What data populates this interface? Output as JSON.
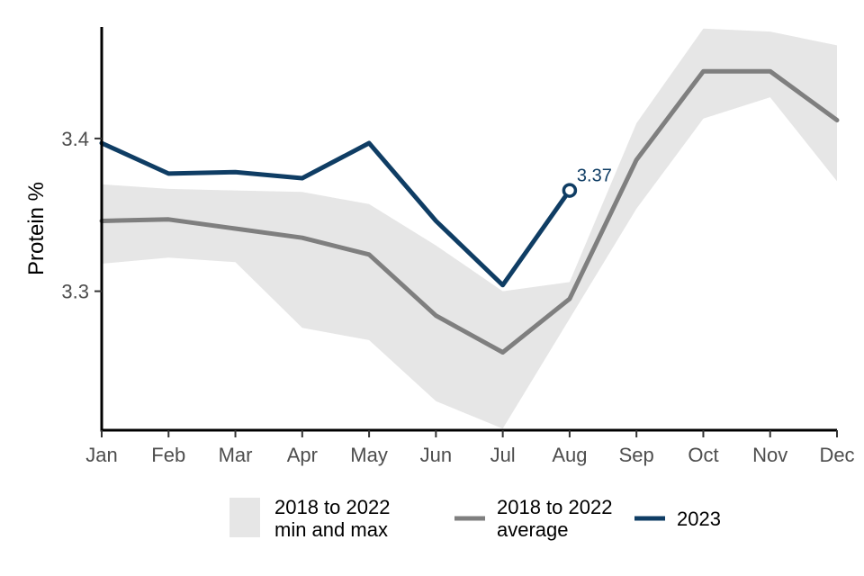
{
  "chart_data": {
    "type": "line",
    "title": "",
    "xlabel": "",
    "ylabel": "Protein %",
    "categories": [
      "Jan",
      "Feb",
      "Mar",
      "Apr",
      "May",
      "Jun",
      "Jul",
      "Aug",
      "Sep",
      "Oct",
      "Nov",
      "Dec"
    ],
    "ylim": [
      3.209,
      3.473
    ],
    "yticks": [
      3.3,
      3.4
    ],
    "ytick_labels": [
      "3.3",
      "3.4"
    ],
    "range_band": {
      "name": "2018 to 2022 min and max",
      "min": [
        3.318,
        3.322,
        3.319,
        3.276,
        3.268,
        3.228,
        3.21,
        3.282,
        3.354,
        3.413,
        3.427,
        3.372
      ],
      "max": [
        3.37,
        3.367,
        3.366,
        3.365,
        3.357,
        3.33,
        3.3,
        3.306,
        3.41,
        3.472,
        3.47,
        3.461
      ],
      "color": "#e6e6e6"
    },
    "series": [
      {
        "name": "2018 to 2022 average",
        "values": [
          3.346,
          3.347,
          3.341,
          3.335,
          3.324,
          3.284,
          3.26,
          3.295,
          3.386,
          3.444,
          3.444,
          3.412
        ],
        "color": "#7f7f7f"
      },
      {
        "name": "2023",
        "values": [
          3.397,
          3.377,
          3.378,
          3.374,
          3.397,
          3.346,
          3.304,
          3.366,
          null,
          null,
          null,
          null
        ],
        "color": "#0f3d64"
      }
    ],
    "annotation": {
      "label": "3.37",
      "category": "Aug",
      "value": 3.366
    },
    "legend": {
      "placement": "bottom",
      "items": [
        {
          "kind": "band",
          "line1": "2018 to 2022",
          "line2": "min and max"
        },
        {
          "kind": "line",
          "line1": "2018 to 2022",
          "line2": "average"
        },
        {
          "kind": "line",
          "line1": "2023",
          "line2": ""
        }
      ]
    },
    "grid": false
  }
}
